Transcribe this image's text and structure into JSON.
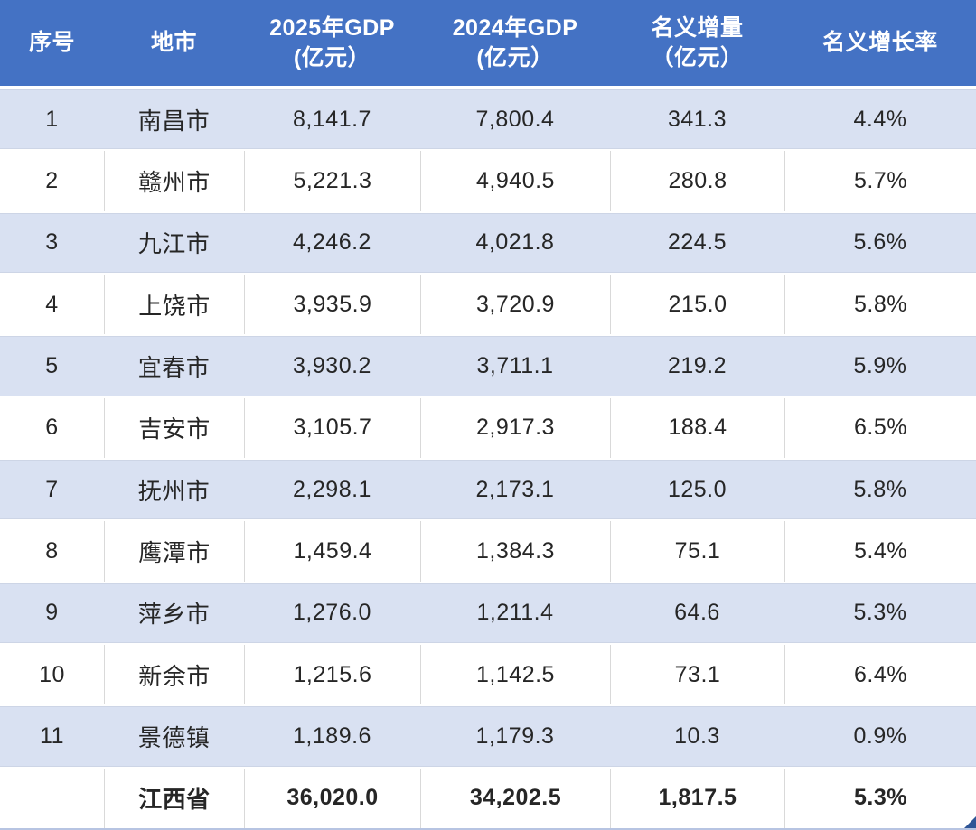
{
  "colors": {
    "header_bg": "#4472C4",
    "header_text": "#FFFFFF",
    "band_row_bg": "#D9E1F2",
    "white_row_bg": "#FFFFFF",
    "body_text": "#262626",
    "grid_line": "#D9D9D9",
    "bottom_border": "#B7C4E2",
    "fill_handle": "#2E5596"
  },
  "chart_data": {
    "type": "table",
    "columns": [
      "序号",
      "地市",
      "2025年GDP\n(亿元）",
      "2024年GDP\n(亿元）",
      "名义增量\n（亿元）",
      "名义增长率"
    ],
    "rows": [
      [
        "1",
        "南昌市",
        "8,141.7",
        "7,800.4",
        "341.3",
        "4.4%"
      ],
      [
        "2",
        "赣州市",
        "5,221.3",
        "4,940.5",
        "280.8",
        "5.7%"
      ],
      [
        "3",
        "九江市",
        "4,246.2",
        "4,021.8",
        "224.5",
        "5.6%"
      ],
      [
        "4",
        "上饶市",
        "3,935.9",
        "3,720.9",
        "215.0",
        "5.8%"
      ],
      [
        "5",
        "宜春市",
        "3,930.2",
        "3,711.1",
        "219.2",
        "5.9%"
      ],
      [
        "6",
        "吉安市",
        "3,105.7",
        "2,917.3",
        "188.4",
        "6.5%"
      ],
      [
        "7",
        "抚州市",
        "2,298.1",
        "2,173.1",
        "125.0",
        "5.8%"
      ],
      [
        "8",
        "鹰潭市",
        "1,459.4",
        "1,384.3",
        "75.1",
        "5.4%"
      ],
      [
        "9",
        "萍乡市",
        "1,276.0",
        "1,211.4",
        "64.6",
        "5.3%"
      ],
      [
        "10",
        "新余市",
        "1,215.6",
        "1,142.5",
        "73.1",
        "6.4%"
      ],
      [
        "11",
        "景德镇",
        "1,189.6",
        "1,179.3",
        "10.3",
        "0.9%"
      ]
    ],
    "total_row": [
      "",
      "江西省",
      "36,020.0",
      "34,202.5",
      "1,817.5",
      "5.3%"
    ]
  }
}
